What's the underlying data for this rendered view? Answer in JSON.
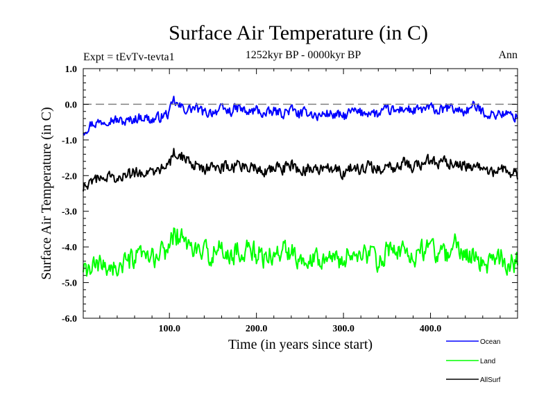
{
  "chart_data": {
    "type": "line",
    "title": "Surface Air Temperature (in C)",
    "subtitle": "1252kyr BP - 0000kyr BP",
    "experiment_label": "Expt = tEvTv-tevta1",
    "season_label": "Ann",
    "xlabel": "Time (in years since start)",
    "ylabel": "Surface Air Temperature (in C)",
    "xlim": [
      1,
      500
    ],
    "ylim": [
      -6.0,
      1.0
    ],
    "x_ticks": [
      "100.0",
      "200.0",
      "300.0",
      "400.0"
    ],
    "x_tick_values": [
      100,
      200,
      300,
      400
    ],
    "y_ticks": [
      "1.0",
      "0.0",
      "-1.0",
      "-2.0",
      "-3.0",
      "-4.0",
      "-5.0",
      "-6.0"
    ],
    "y_tick_values": [
      1,
      0,
      -1,
      -2,
      -3,
      -4,
      -5,
      -6
    ],
    "reference_line": 0.0,
    "legend_position": "bottom-right",
    "series": [
      {
        "name": "Ocean",
        "color": "#0000ff",
        "x": [
          1,
          10,
          20,
          30,
          40,
          50,
          60,
          70,
          80,
          90,
          100,
          105,
          110,
          120,
          130,
          140,
          150,
          160,
          170,
          180,
          190,
          200,
          210,
          220,
          230,
          240,
          250,
          260,
          270,
          280,
          290,
          300,
          310,
          320,
          330,
          340,
          350,
          360,
          370,
          380,
          390,
          400,
          410,
          420,
          430,
          440,
          450,
          460,
          470,
          480,
          490,
          500
        ],
        "values": [
          -0.75,
          -0.55,
          -0.5,
          -0.4,
          -0.45,
          -0.5,
          -0.4,
          -0.35,
          -0.45,
          -0.35,
          -0.25,
          0.1,
          -0.05,
          -0.15,
          -0.1,
          -0.25,
          -0.2,
          -0.15,
          -0.2,
          -0.1,
          -0.25,
          -0.15,
          -0.3,
          -0.2,
          -0.25,
          -0.15,
          -0.3,
          -0.2,
          -0.35,
          -0.25,
          -0.3,
          -0.35,
          -0.2,
          -0.25,
          -0.2,
          -0.3,
          -0.15,
          -0.2,
          -0.1,
          -0.2,
          -0.15,
          -0.1,
          -0.2,
          -0.1,
          -0.15,
          -0.2,
          -0.05,
          -0.2,
          -0.3,
          -0.25,
          -0.3,
          -0.35
        ]
      },
      {
        "name": "Land",
        "color": "#00ff00",
        "x": [
          1,
          10,
          20,
          30,
          40,
          50,
          60,
          70,
          80,
          90,
          100,
          105,
          110,
          120,
          130,
          140,
          150,
          160,
          170,
          180,
          190,
          200,
          210,
          220,
          230,
          240,
          250,
          260,
          270,
          280,
          290,
          300,
          310,
          320,
          330,
          340,
          350,
          360,
          370,
          380,
          390,
          400,
          410,
          420,
          430,
          440,
          450,
          460,
          470,
          480,
          490,
          500
        ],
        "values": [
          -4.8,
          -4.6,
          -4.55,
          -4.5,
          -4.6,
          -4.5,
          -4.35,
          -4.3,
          -4.35,
          -4.2,
          -4.0,
          -3.6,
          -3.7,
          -3.9,
          -4.1,
          -4.2,
          -4.15,
          -4.1,
          -4.25,
          -4.1,
          -4.05,
          -4.2,
          -4.3,
          -4.2,
          -4.15,
          -4.1,
          -4.3,
          -4.25,
          -4.3,
          -4.2,
          -4.35,
          -4.4,
          -4.1,
          -4.3,
          -4.2,
          -4.4,
          -4.15,
          -4.2,
          -4.1,
          -4.25,
          -4.1,
          -4.0,
          -4.3,
          -4.2,
          -3.9,
          -4.2,
          -4.3,
          -4.4,
          -4.5,
          -4.3,
          -4.45,
          -4.4
        ]
      },
      {
        "name": "AllSurf",
        "color": "#000000",
        "x": [
          1,
          10,
          20,
          30,
          40,
          50,
          60,
          70,
          80,
          90,
          100,
          105,
          110,
          120,
          130,
          140,
          150,
          160,
          170,
          180,
          190,
          200,
          210,
          220,
          230,
          240,
          250,
          260,
          270,
          280,
          290,
          300,
          310,
          320,
          330,
          340,
          350,
          360,
          370,
          380,
          390,
          400,
          410,
          420,
          430,
          440,
          450,
          460,
          470,
          480,
          490,
          500
        ],
        "values": [
          -2.3,
          -2.1,
          -2.05,
          -2.0,
          -2.1,
          -2.0,
          -1.95,
          -1.9,
          -1.95,
          -1.85,
          -1.7,
          -1.35,
          -1.45,
          -1.55,
          -1.7,
          -1.8,
          -1.8,
          -1.75,
          -1.8,
          -1.7,
          -1.8,
          -1.75,
          -1.85,
          -1.75,
          -1.8,
          -1.7,
          -1.85,
          -1.8,
          -1.9,
          -1.8,
          -1.85,
          -1.9,
          -1.8,
          -1.85,
          -1.75,
          -1.85,
          -1.7,
          -1.75,
          -1.65,
          -1.75,
          -1.65,
          -1.6,
          -1.7,
          -1.65,
          -1.6,
          -1.7,
          -1.75,
          -1.85,
          -1.9,
          -1.85,
          -1.9,
          -1.95
        ]
      }
    ]
  }
}
